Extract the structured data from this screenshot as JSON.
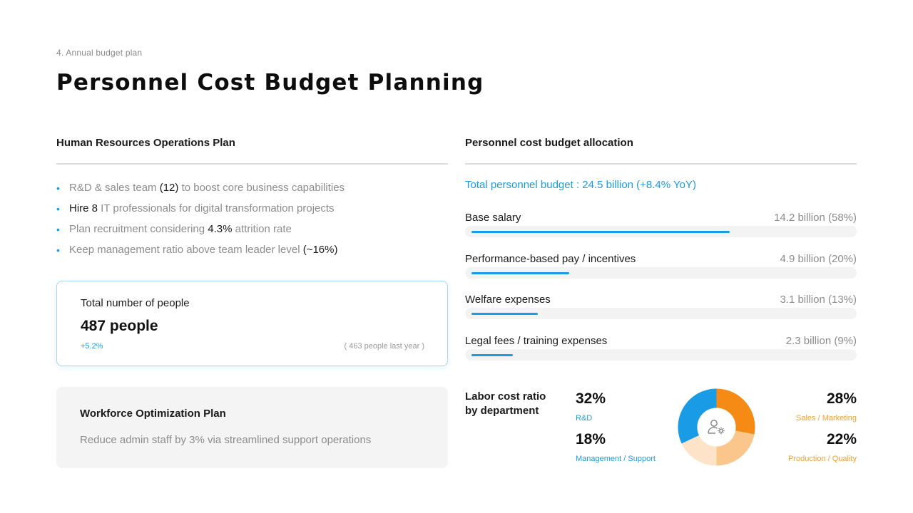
{
  "header": {
    "kicker": "4. Annual budget plan",
    "title": "Personnel Cost Budget Planning"
  },
  "left": {
    "heading": "Human Resources Operations Plan",
    "bullets": [
      {
        "pre": "R&D & sales team ",
        "hl": "(12)",
        "post": " to boost core business capabilities"
      },
      {
        "pre": "",
        "hl": "Hire 8",
        "post": " IT professionals for digital transformation projects"
      },
      {
        "pre": "Plan recruitment considering ",
        "hl": "4.3%",
        "post": " attrition rate"
      },
      {
        "pre": "Keep management ratio above team leader level ",
        "hl": "(~16%)",
        "post": ""
      }
    ],
    "total_card": {
      "label": "Total number of people",
      "value": "487 people",
      "change": "+5.2%",
      "last_year": "( 463 people last year )"
    },
    "optimization_card": {
      "label": "Workforce Optimization Plan",
      "description": "Reduce admin staff by 3% via streamlined support operations"
    }
  },
  "right": {
    "heading": "Personnel cost budget allocation",
    "total_line": "Total personnel budget : 24.5 billion  (+8.4% YoY)",
    "allocations": [
      {
        "name": "Base salary",
        "amount": "14.2 billion  (58%)",
        "fill_fraction": 0.66
      },
      {
        "name": "Performance-based pay / incentives",
        "amount": "4.9 billion  (20%)",
        "fill_fraction": 0.25
      },
      {
        "name": "Welfare expenses",
        "amount": "3.1 billion  (13%)",
        "fill_fraction": 0.17
      },
      {
        "name": "Legal fees / training expenses",
        "amount": "2.3 billion  (9%)",
        "fill_fraction": 0.105
      }
    ],
    "department": {
      "title": "Labor cost ratio by department",
      "items": [
        {
          "pct": "32%",
          "label": "R&D",
          "value": 32,
          "color": "#1a9be6"
        },
        {
          "pct": "18%",
          "label": "Management / Support",
          "value": 18,
          "color": "#fde3c8"
        },
        {
          "pct": "28%",
          "label": "Sales / Marketing",
          "value": 28,
          "color": "#f58a14"
        },
        {
          "pct": "22%",
          "label": "Production / Quality",
          "value": 22,
          "color": "#fbc68c"
        }
      ],
      "center_icon": "user-gear-icon"
    }
  }
}
